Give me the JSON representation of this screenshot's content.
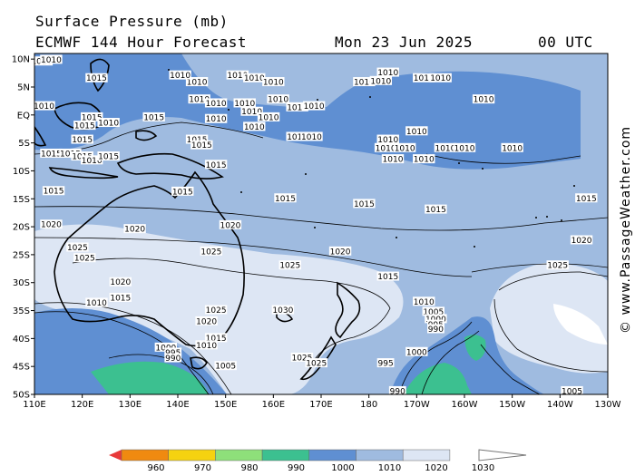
{
  "header": {
    "title": "Surface Pressure (mb)",
    "model": "ECMWF 144 Hour Forecast",
    "date": "Mon 23 Jun 2025",
    "time": "00 UTC"
  },
  "watermark": "© www.PassageWeather.com",
  "map": {
    "lat_labels": [
      "10N",
      "5N",
      "EQ",
      "5S",
      "10S",
      "15S",
      "20S",
      "25S",
      "30S",
      "35S",
      "40S",
      "45S",
      "50S"
    ],
    "lon_labels": [
      "110E",
      "120E",
      "130E",
      "140E",
      "150E",
      "160E",
      "170E",
      "180",
      "170W",
      "160W",
      "150W",
      "140W",
      "130W"
    ]
  },
  "legend": {
    "values": [
      "960",
      "970",
      "980",
      "990",
      "1000",
      "1010",
      "1020",
      "1030"
    ],
    "colors": [
      "#e83a3a",
      "#f08a10",
      "#f5d210",
      "#8ee07a",
      "#3cc090",
      "#5f8fd2",
      "#9fbbe0",
      "#dde6f4",
      "#ffffff"
    ]
  },
  "contour_labels": [
    {
      "t": "1010",
      "lon": 111.5,
      "lat": 9.5
    },
    {
      "t": "1010",
      "lon": 113.5,
      "lat": 9.8
    },
    {
      "t": "1015",
      "lon": 123,
      "lat": 6.5
    },
    {
      "t": "1010",
      "lon": 144,
      "lat": 5.8
    },
    {
      "t": "1010",
      "lon": 140.5,
      "lat": 7
    },
    {
      "t": "1010",
      "lon": 152.5,
      "lat": 7
    },
    {
      "t": "1010",
      "lon": 156,
      "lat": 6.5
    },
    {
      "t": "1010",
      "lon": 160,
      "lat": 5.8
    },
    {
      "t": "1010",
      "lon": 179,
      "lat": 5.8
    },
    {
      "t": "1010",
      "lon": 182.5,
      "lat": 6
    },
    {
      "t": "1010",
      "lon": 184,
      "lat": 7.5
    },
    {
      "t": "1010",
      "lon": 191.5,
      "lat": 6.5
    },
    {
      "t": "1010",
      "lon": 195,
      "lat": 6.5
    },
    {
      "t": "1010",
      "lon": 144.5,
      "lat": 2.7
    },
    {
      "t": "1010",
      "lon": 148,
      "lat": 2
    },
    {
      "t": "1010",
      "lon": 154,
      "lat": 2
    },
    {
      "t": "1010",
      "lon": 155.5,
      "lat": 0.5
    },
    {
      "t": "1010",
      "lon": 161,
      "lat": 2.7
    },
    {
      "t": "1010",
      "lon": 165,
      "lat": 1.3
    },
    {
      "t": "1010",
      "lon": 168.5,
      "lat": 1.5
    },
    {
      "t": "1010",
      "lon": 112,
      "lat": 1.5
    },
    {
      "t": "1010",
      "lon": 204,
      "lat": 2.7
    },
    {
      "t": "1015",
      "lon": 135,
      "lat": -0.5
    },
    {
      "t": "1015",
      "lon": 122,
      "lat": -0.5
    },
    {
      "t": "1015",
      "lon": 120.5,
      "lat": -2
    },
    {
      "t": "1010",
      "lon": 125.5,
      "lat": -1.5
    },
    {
      "t": "1015",
      "lon": 120,
      "lat": -4.5
    },
    {
      "t": "1010",
      "lon": 148,
      "lat": -0.8
    },
    {
      "t": "1010",
      "lon": 156,
      "lat": -2.2
    },
    {
      "t": "1010",
      "lon": 159,
      "lat": -0.5
    },
    {
      "t": "1010",
      "lon": 165,
      "lat": -4
    },
    {
      "t": "1010",
      "lon": 168,
      "lat": -4
    },
    {
      "t": "1010",
      "lon": 184,
      "lat": -4.5
    },
    {
      "t": "1010",
      "lon": 190,
      "lat": -3
    },
    {
      "t": "1010",
      "lon": 183.5,
      "lat": -6
    },
    {
      "t": "1010",
      "lon": 187.5,
      "lat": -6
    },
    {
      "t": "1010",
      "lon": 185,
      "lat": -8
    },
    {
      "t": "1010",
      "lon": 191.5,
      "lat": -8
    },
    {
      "t": "1010",
      "lon": 196,
      "lat": -6
    },
    {
      "t": "1010",
      "lon": 200,
      "lat": -6
    },
    {
      "t": "1010",
      "lon": 210,
      "lat": -6
    },
    {
      "t": "1015",
      "lon": 144,
      "lat": -4.5
    },
    {
      "t": "1015",
      "lon": 145,
      "lat": -5.5
    },
    {
      "t": "1015",
      "lon": 113.5,
      "lat": -7
    },
    {
      "t": "1015",
      "lon": 117.5,
      "lat": -7
    },
    {
      "t": "1015",
      "lon": 120,
      "lat": -7.5
    },
    {
      "t": "1010",
      "lon": 122,
      "lat": -8.2
    },
    {
      "t": "1015",
      "lon": 125.5,
      "lat": -7.5
    },
    {
      "t": "1015",
      "lon": 148,
      "lat": -9
    },
    {
      "t": "1015",
      "lon": 114,
      "lat": -13.7
    },
    {
      "t": "1015",
      "lon": 141,
      "lat": -13.8
    },
    {
      "t": "1015",
      "lon": 162.5,
      "lat": -15
    },
    {
      "t": "1015",
      "lon": 179,
      "lat": -16
    },
    {
      "t": "1015",
      "lon": 194,
      "lat": -17
    },
    {
      "t": "1015",
      "lon": 225.5,
      "lat": -15
    },
    {
      "t": "1020",
      "lon": 113.5,
      "lat": -19.7
    },
    {
      "t": "1020",
      "lon": 131,
      "lat": -20.5
    },
    {
      "t": "1020",
      "lon": 151,
      "lat": -19.8
    },
    {
      "t": "1020",
      "lon": 174,
      "lat": -24.5
    },
    {
      "t": "1020",
      "lon": 224.5,
      "lat": -22.5
    },
    {
      "t": "1025",
      "lon": 119,
      "lat": -23.8
    },
    {
      "t": "1025",
      "lon": 120.5,
      "lat": -25.7
    },
    {
      "t": "1025",
      "lon": 147,
      "lat": -24.5
    },
    {
      "t": "1025",
      "lon": 163.5,
      "lat": -27
    },
    {
      "t": "1025",
      "lon": 219.5,
      "lat": -27
    },
    {
      "t": "1015",
      "lon": 184,
      "lat": -29
    },
    {
      "t": "1020",
      "lon": 128,
      "lat": -30
    },
    {
      "t": "1015",
      "lon": 128,
      "lat": -32.8
    },
    {
      "t": "1010",
      "lon": 123,
      "lat": -33.7
    },
    {
      "t": "1030",
      "lon": 162,
      "lat": -35
    },
    {
      "t": "1025",
      "lon": 148,
      "lat": -35
    },
    {
      "t": "1020",
      "lon": 146,
      "lat": -37
    },
    {
      "t": "1015",
      "lon": 148,
      "lat": -40
    },
    {
      "t": "1010",
      "lon": 146,
      "lat": -41.3
    },
    {
      "t": "1005",
      "lon": 150,
      "lat": -45
    },
    {
      "t": "1000",
      "lon": 137.5,
      "lat": -41.7
    },
    {
      "t": "995",
      "lon": 139,
      "lat": -42.6
    },
    {
      "t": "990",
      "lon": 139,
      "lat": -43.6
    },
    {
      "t": "1025",
      "lon": 166,
      "lat": -43.5
    },
    {
      "t": "1025",
      "lon": 169,
      "lat": -44.5
    },
    {
      "t": "1010",
      "lon": 191.5,
      "lat": -33.5
    },
    {
      "t": "1005",
      "lon": 193.5,
      "lat": -35.3
    },
    {
      "t": "1000",
      "lon": 194,
      "lat": -36.6
    },
    {
      "t": "995",
      "lon": 194,
      "lat": -37.6
    },
    {
      "t": "990",
      "lon": 194,
      "lat": -38.4
    },
    {
      "t": "1000",
      "lon": 190,
      "lat": -42.5
    },
    {
      "t": "995",
      "lon": 183.5,
      "lat": -44.5
    },
    {
      "t": "990",
      "lon": 186,
      "lat": -49.5
    },
    {
      "t": "1005",
      "lon": 222.5,
      "lat": -49.5
    }
  ]
}
